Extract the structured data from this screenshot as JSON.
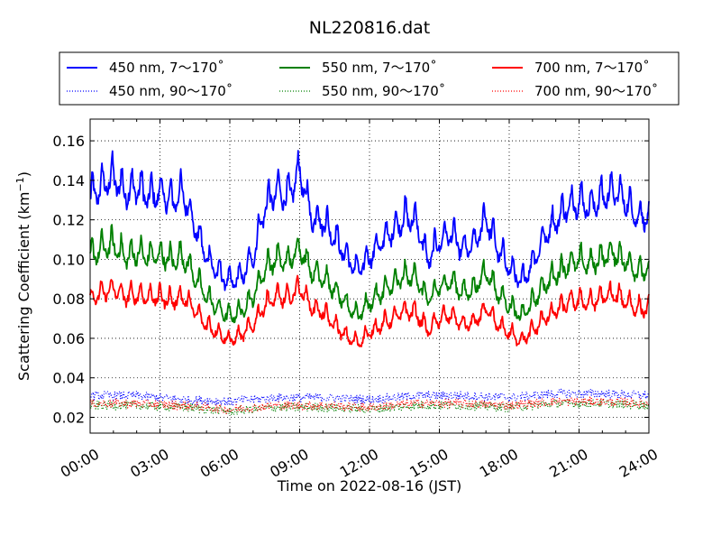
{
  "chart_data": {
    "type": "line",
    "title": "NL220816.dat",
    "xlabel": "Time on 2022-08-16 (JST)",
    "ylabel": "Scattering Coefficient (km",
    "ylabel_sup": "−1",
    "ylabel_close": ")",
    "xlim_hours": [
      0,
      24
    ],
    "ylim": [
      0.012,
      0.171
    ],
    "grid": true,
    "legend_placement": "top-center",
    "x_ticks": [
      "00:00",
      "03:00",
      "06:00",
      "09:00",
      "12:00",
      "15:00",
      "18:00",
      "21:00",
      "24:00"
    ],
    "x_tick_hours": [
      0,
      3,
      6,
      9,
      12,
      15,
      18,
      21,
      24
    ],
    "y_ticks": [
      0.02,
      0.04,
      0.06,
      0.08,
      0.1,
      0.12,
      0.14,
      0.16
    ],
    "y_tick_labels": [
      "0.02",
      "0.04",
      "0.06",
      "0.08",
      "0.10",
      "0.12",
      "0.14",
      "0.16"
    ],
    "series": [
      {
        "name": "450 nm, 7～170˚",
        "color": "#0000ff",
        "style": "solid",
        "x": [
          0,
          0.5,
          1,
          1.5,
          2,
          2.5,
          3,
          3.5,
          4,
          4.5,
          5,
          5.5,
          6,
          6.5,
          7,
          7.5,
          8,
          8.5,
          9,
          9.5,
          10,
          10.5,
          11,
          11.5,
          12,
          12.5,
          13,
          13.5,
          14,
          14.5,
          15,
          15.5,
          16,
          16.5,
          17,
          17.5,
          18,
          18.5,
          19,
          19.5,
          20,
          20.5,
          21,
          21.5,
          22,
          22.5,
          23,
          23.5,
          24
        ],
        "y": [
          0.13,
          0.135,
          0.14,
          0.132,
          0.135,
          0.13,
          0.132,
          0.128,
          0.132,
          0.115,
          0.1,
          0.092,
          0.087,
          0.09,
          0.1,
          0.125,
          0.133,
          0.13,
          0.143,
          0.12,
          0.118,
          0.11,
          0.1,
          0.093,
          0.1,
          0.107,
          0.113,
          0.12,
          0.118,
          0.098,
          0.108,
          0.112,
          0.103,
          0.106,
          0.12,
          0.104,
          0.095,
          0.087,
          0.097,
          0.11,
          0.118,
          0.125,
          0.128,
          0.125,
          0.13,
          0.133,
          0.128,
          0.12,
          0.12
        ]
      },
      {
        "name": "550 nm, 7～170˚",
        "color": "#008000",
        "style": "solid",
        "x": [
          0,
          0.5,
          1,
          1.5,
          2,
          2.5,
          3,
          3.5,
          4,
          4.5,
          5,
          5.5,
          6,
          6.5,
          7,
          7.5,
          8,
          8.5,
          9,
          9.5,
          10,
          10.5,
          11,
          11.5,
          12,
          12.5,
          13,
          13.5,
          14,
          14.5,
          15,
          15.5,
          16,
          16.5,
          17,
          17.5,
          18,
          18.5,
          19,
          19.5,
          20,
          20.5,
          21,
          21.5,
          22,
          22.5,
          23,
          23.5,
          24
        ],
        "y": [
          0.1,
          0.104,
          0.106,
          0.1,
          0.102,
          0.1,
          0.101,
          0.098,
          0.1,
          0.09,
          0.08,
          0.074,
          0.07,
          0.073,
          0.08,
          0.094,
          0.099,
          0.097,
          0.105,
          0.093,
          0.09,
          0.083,
          0.076,
          0.071,
          0.077,
          0.082,
          0.086,
          0.09,
          0.09,
          0.078,
          0.085,
          0.088,
          0.082,
          0.084,
          0.093,
          0.082,
          0.076,
          0.07,
          0.077,
          0.086,
          0.091,
          0.096,
          0.098,
          0.096,
          0.1,
          0.102,
          0.098,
          0.093,
          0.093
        ]
      },
      {
        "name": "700 nm, 7～170˚",
        "color": "#ff0000",
        "style": "solid",
        "x": [
          0,
          0.5,
          1,
          1.5,
          2,
          2.5,
          3,
          3.5,
          4,
          4.5,
          5,
          5.5,
          6,
          6.5,
          7,
          7.5,
          8,
          8.5,
          9,
          9.5,
          10,
          10.5,
          11,
          11.5,
          12,
          12.5,
          13,
          13.5,
          14,
          14.5,
          15,
          15.5,
          16,
          16.5,
          17,
          17.5,
          18,
          18.5,
          19,
          19.5,
          20,
          20.5,
          21,
          21.5,
          22,
          22.5,
          23,
          23.5,
          24
        ],
        "y": [
          0.078,
          0.082,
          0.084,
          0.08,
          0.081,
          0.08,
          0.08,
          0.078,
          0.08,
          0.073,
          0.066,
          0.062,
          0.058,
          0.061,
          0.066,
          0.076,
          0.08,
          0.079,
          0.085,
          0.075,
          0.072,
          0.066,
          0.06,
          0.057,
          0.062,
          0.066,
          0.069,
          0.073,
          0.072,
          0.063,
          0.069,
          0.071,
          0.066,
          0.067,
          0.074,
          0.066,
          0.062,
          0.058,
          0.063,
          0.069,
          0.073,
          0.077,
          0.078,
          0.077,
          0.08,
          0.081,
          0.078,
          0.074,
          0.074
        ]
      },
      {
        "name": "450 nm, 90～170˚",
        "color": "#0000ff",
        "style": "dotted",
        "x": [
          0,
          2,
          4,
          6,
          8,
          10,
          12,
          14,
          16,
          18,
          20,
          22,
          24
        ],
        "y": [
          0.031,
          0.031,
          0.029,
          0.028,
          0.03,
          0.03,
          0.029,
          0.031,
          0.031,
          0.03,
          0.032,
          0.032,
          0.031
        ]
      },
      {
        "name": "550 nm, 90～170˚",
        "color": "#008000",
        "style": "dotted",
        "x": [
          0,
          2,
          4,
          6,
          8,
          10,
          12,
          14,
          16,
          18,
          20,
          22,
          24
        ],
        "y": [
          0.026,
          0.026,
          0.025,
          0.023,
          0.025,
          0.025,
          0.024,
          0.026,
          0.026,
          0.025,
          0.027,
          0.027,
          0.026
        ]
      },
      {
        "name": "700 nm, 90～170˚",
        "color": "#ff0000",
        "style": "dotted",
        "x": [
          0,
          2,
          4,
          6,
          8,
          10,
          12,
          14,
          16,
          18,
          20,
          22,
          24
        ],
        "y": [
          0.027,
          0.027,
          0.026,
          0.024,
          0.026,
          0.026,
          0.025,
          0.027,
          0.027,
          0.026,
          0.028,
          0.028,
          0.027
        ]
      }
    ],
    "legend_order": [
      0,
      1,
      2,
      3,
      4,
      5
    ]
  }
}
